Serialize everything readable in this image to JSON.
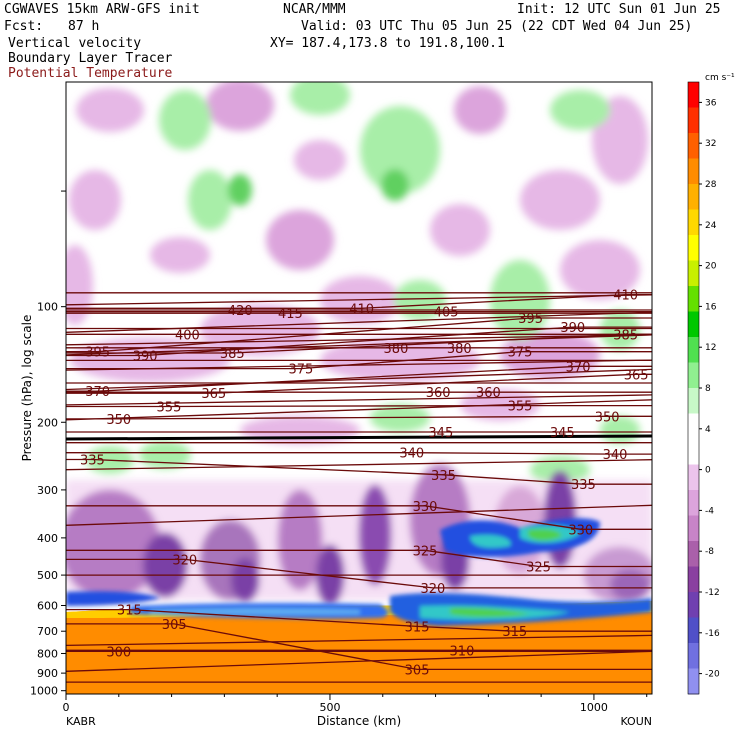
{
  "header": {
    "line1_left": "CGWAVES 15km ARW-GFS init",
    "line1_mid": "NCAR/MMM",
    "line1_right": "Init: 12 UTC Sun 01 Jun 25",
    "fcst_label": "Fcst:",
    "fcst_value": "87 h",
    "valid": "Valid: 03 UTC Thu 05 Jun 25 (22 CDT Wed 04 Jun 25)",
    "field1": "Vertical velocity",
    "xy": "XY= 187.4,173.8 to 191.8,100.1",
    "field2": "Boundary Layer Tracer",
    "field3": "Potential Temperature"
  },
  "colors": {
    "theta": "#6b0a0a",
    "header_red": "#8b1a1a",
    "tracer_orange": "#ff8c00"
  },
  "chart_data": {
    "type": "heatmap",
    "title": "Vertical velocity / Boundary Layer Tracer / Potential Temperature",
    "xlabel": "Distance (km)",
    "ylabel": "Pressure (hPa), log scale",
    "x_ticks": [
      0,
      500,
      1000
    ],
    "xlim": [
      0,
      1110
    ],
    "x_endpoint_labels": {
      "left": "KABR",
      "right": "KOUN"
    },
    "y_ticks": [
      100,
      200,
      300,
      400,
      500,
      600,
      700,
      800,
      900,
      1000
    ],
    "ylim": [
      1020,
      26
    ],
    "y_scale": "log",
    "colorbar": {
      "unit_label": "cm s⁻¹",
      "ticks": [
        36,
        32,
        28,
        24,
        20,
        16,
        12,
        8,
        4,
        0,
        -4,
        -8,
        -12,
        -16,
        -20
      ],
      "colors": [
        "#ff0000",
        "#ff3000",
        "#ff6000",
        "#ff8c00",
        "#ffb000",
        "#ffd800",
        "#ffff00",
        "#c8f000",
        "#64e000",
        "#00c800",
        "#50e050",
        "#90f090",
        "#c8f8c8",
        "#ffffff",
        "#ffffff",
        "#ecc4ec",
        "#dca4dc",
        "#c884c8",
        "#aa60aa",
        "#8a40a0",
        "#7040b0",
        "#5050c8",
        "#7070e0",
        "#9090f0"
      ]
    },
    "theta_contour_labels": [
      {
        "v": 420,
        "x": 330,
        "p": 102
      },
      {
        "v": 415,
        "x": 425,
        "p": 104
      },
      {
        "v": 410,
        "x": 560,
        "p": 101
      },
      {
        "v": 405,
        "x": 720,
        "p": 103
      },
      {
        "v": 410,
        "x": 1060,
        "p": 93
      },
      {
        "v": 400,
        "x": 230,
        "p": 118
      },
      {
        "v": 395,
        "x": 60,
        "p": 131
      },
      {
        "v": 390,
        "x": 150,
        "p": 134
      },
      {
        "v": 385,
        "x": 315,
        "p": 132
      },
      {
        "v": 375,
        "x": 445,
        "p": 145
      },
      {
        "v": 380,
        "x": 625,
        "p": 128
      },
      {
        "v": 380,
        "x": 745,
        "p": 128
      },
      {
        "v": 375,
        "x": 860,
        "p": 131
      },
      {
        "v": 395,
        "x": 880,
        "p": 107
      },
      {
        "v": 390,
        "x": 960,
        "p": 113
      },
      {
        "v": 385,
        "x": 1060,
        "p": 118
      },
      {
        "v": 370,
        "x": 970,
        "p": 143
      },
      {
        "v": 365,
        "x": 1080,
        "p": 150
      },
      {
        "v": 370,
        "x": 60,
        "p": 166
      },
      {
        "v": 365,
        "x": 280,
        "p": 168
      },
      {
        "v": 360,
        "x": 705,
        "p": 167
      },
      {
        "v": 360,
        "x": 800,
        "p": 167
      },
      {
        "v": 355,
        "x": 195,
        "p": 182
      },
      {
        "v": 355,
        "x": 860,
        "p": 181
      },
      {
        "v": 350,
        "x": 100,
        "p": 196
      },
      {
        "v": 350,
        "x": 1025,
        "p": 193
      },
      {
        "v": 345,
        "x": 710,
        "p": 212
      },
      {
        "v": 345,
        "x": 940,
        "p": 212
      },
      {
        "v": 340,
        "x": 655,
        "p": 240
      },
      {
        "v": 340,
        "x": 1040,
        "p": 242
      },
      {
        "v": 335,
        "x": 50,
        "p": 250
      },
      {
        "v": 335,
        "x": 715,
        "p": 274
      },
      {
        "v": 335,
        "x": 980,
        "p": 290
      },
      {
        "v": 330,
        "x": 680,
        "p": 330
      },
      {
        "v": 330,
        "x": 975,
        "p": 380
      },
      {
        "v": 325,
        "x": 680,
        "p": 431
      },
      {
        "v": 325,
        "x": 895,
        "p": 475
      },
      {
        "v": 320,
        "x": 225,
        "p": 455
      },
      {
        "v": 320,
        "x": 695,
        "p": 540
      },
      {
        "v": 315,
        "x": 120,
        "p": 615
      },
      {
        "v": 315,
        "x": 665,
        "p": 680
      },
      {
        "v": 315,
        "x": 850,
        "p": 700
      },
      {
        "v": 310,
        "x": 750,
        "p": 785
      },
      {
        "v": 305,
        "x": 205,
        "p": 670
      },
      {
        "v": 305,
        "x": 665,
        "p": 880
      },
      {
        "v": 300,
        "x": 100,
        "p": 790
      }
    ]
  }
}
